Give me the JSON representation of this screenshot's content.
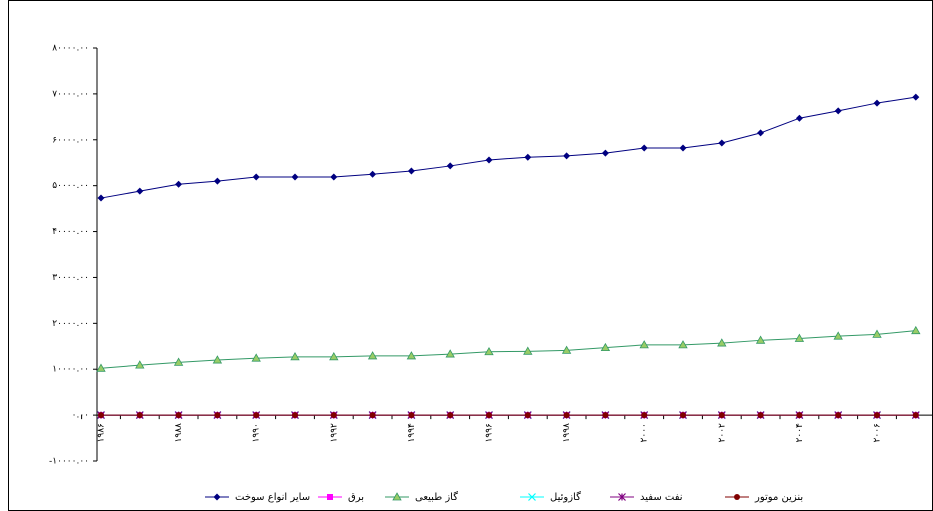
{
  "chart_data": {
    "type": "line",
    "categories": [
      "۱۹۸۶",
      null,
      "۱۹۸۸",
      null,
      "۱۹۹۰",
      null,
      "۱۹۹۲",
      null,
      "۱۹۹۴",
      null,
      "۱۹۹۶",
      null,
      "۱۹۹۸",
      null,
      "۲۰۰۰",
      null,
      "۲۰۰۲",
      null,
      "۲۰۰۴",
      null,
      "۲۰۰۶",
      null
    ],
    "ylim": [
      -10000,
      80000
    ],
    "yticks": [
      {
        "value": -10000,
        "label": "-۱۰۰۰۰.۰۰"
      },
      {
        "value": 0,
        "label": "۰.۰۰"
      },
      {
        "value": 10000,
        "label": "۱۰۰۰۰.۰۰"
      },
      {
        "value": 20000,
        "label": "۲۰۰۰۰.۰۰"
      },
      {
        "value": 30000,
        "label": "۳۰۰۰۰.۰۰"
      },
      {
        "value": 40000,
        "label": "۴۰۰۰۰.۰۰"
      },
      {
        "value": 50000,
        "label": "۵۰۰۰۰.۰۰"
      },
      {
        "value": 60000,
        "label": "۶۰۰۰۰.۰۰"
      },
      {
        "value": 70000,
        "label": "۷۰۰۰۰.۰۰"
      },
      {
        "value": 80000,
        "label": "۸۰۰۰۰.۰۰"
      }
    ],
    "grid": false,
    "legend": "bottom",
    "series": [
      {
        "name": "سایر انواع سوخت",
        "color": "#000080",
        "marker": "diamond",
        "values": [
          47300,
          48800,
          50300,
          51000,
          51900,
          51900,
          51900,
          52500,
          53200,
          54300,
          55600,
          56200,
          56500,
          57100,
          58200,
          58200,
          59300,
          61500,
          64700,
          66300,
          68000,
          69300
        ]
      },
      {
        "name": "برق",
        "color": "#ff00ff",
        "marker": "square",
        "values": [
          0,
          0,
          0,
          0,
          0,
          0,
          0,
          0,
          0,
          0,
          0,
          0,
          0,
          0,
          0,
          0,
          0,
          0,
          0,
          0,
          0,
          0
        ]
      },
      {
        "name": "گاز طبیعی",
        "color": "#339966",
        "marker": "triangle",
        "values": [
          10200,
          10900,
          11500,
          12000,
          12400,
          12700,
          12700,
          12900,
          12900,
          13300,
          13800,
          13900,
          14100,
          14700,
          15300,
          15300,
          15700,
          16300,
          16700,
          17200,
          17600,
          18400
        ]
      },
      {
        "name": "گازوئیل",
        "color": "#00ffff",
        "marker": "x",
        "values": [
          0,
          0,
          0,
          0,
          0,
          0,
          0,
          0,
          0,
          0,
          0,
          0,
          0,
          0,
          0,
          0,
          0,
          0,
          0,
          0,
          0,
          0
        ]
      },
      {
        "name": "نفت سفید",
        "color": "#800080",
        "marker": "star",
        "values": [
          0,
          0,
          0,
          0,
          0,
          0,
          0,
          0,
          0,
          0,
          0,
          0,
          0,
          0,
          0,
          0,
          0,
          0,
          0,
          0,
          0,
          0
        ]
      },
      {
        "name": "بنزین موتور",
        "color": "#800000",
        "marker": "circle",
        "values": [
          0,
          0,
          0,
          0,
          0,
          0,
          0,
          0,
          0,
          0,
          0,
          0,
          0,
          0,
          0,
          0,
          0,
          0,
          0,
          0,
          0,
          0
        ]
      }
    ]
  }
}
